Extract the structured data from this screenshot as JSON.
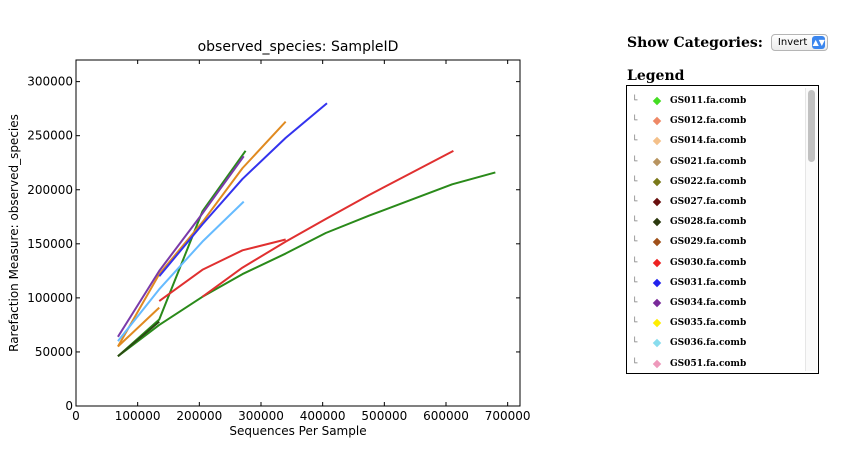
{
  "chart_data": {
    "type": "line",
    "title": "observed_species: SampleID",
    "xlabel": "Sequences Per Sample",
    "ylabel": "Rarefaction Measure: observed_species",
    "xlim": [
      0,
      720000
    ],
    "ylim": [
      0,
      320000
    ],
    "xticks": [
      0,
      100000,
      200000,
      300000,
      400000,
      500000,
      600000,
      700000
    ],
    "yticks": [
      0,
      50000,
      100000,
      150000,
      200000,
      250000,
      300000
    ],
    "grid": false,
    "series": [
      {
        "color": "#2a8a1a",
        "x": [
          68000,
          135000,
          205000,
          275000
        ],
        "y": [
          46000,
          80000,
          180000,
          236000
        ]
      },
      {
        "color": "#2a8a1a",
        "x": [
          68000,
          135000,
          205000,
          270000,
          340000,
          405000,
          475000,
          545000,
          610000,
          680000
        ],
        "y": [
          46000,
          75000,
          101000,
          122000,
          141000,
          160000,
          176000,
          191000,
          205000,
          216000
        ]
      },
      {
        "color": "#e03030",
        "x": [
          135000,
          205000,
          270000,
          340000
        ],
        "y": [
          97000,
          126000,
          144000,
          154000
        ]
      },
      {
        "color": "#e03030",
        "x": [
          205000,
          270000,
          340000,
          405000,
          475000,
          545000,
          612000
        ],
        "y": [
          101000,
          128000,
          152000,
          173000,
          195000,
          216000,
          236000
        ]
      },
      {
        "color": "#e08a20",
        "x": [
          68000,
          135000,
          205000,
          270000,
          340000
        ],
        "y": [
          55000,
          122000,
          170000,
          220000,
          263000
        ]
      },
      {
        "color": "#e08a20",
        "x": [
          68000,
          135000
        ],
        "y": [
          55000,
          91000
        ]
      },
      {
        "color": "#3333ee",
        "x": [
          135000,
          205000,
          270000,
          340000,
          407000
        ],
        "y": [
          120000,
          168000,
          210000,
          248000,
          280000
        ]
      },
      {
        "color": "#7a3aaa",
        "x": [
          68000,
          135000,
          205000,
          272000
        ],
        "y": [
          64000,
          125000,
          178000,
          231000
        ]
      },
      {
        "color": "#66bbff",
        "x": [
          68000,
          135000,
          205000,
          272000
        ],
        "y": [
          60000,
          108000,
          152000,
          189000
        ]
      },
      {
        "color": "#2b4a12",
        "x": [
          68000,
          135000
        ],
        "y": [
          46000,
          78000
        ]
      }
    ]
  },
  "controls": {
    "show_categories_label": "Show Categories:",
    "select_value": "Invert"
  },
  "legend": {
    "title": "Legend",
    "items": [
      {
        "label": "GS011.fa.comb",
        "color": "#44dd22"
      },
      {
        "label": "GS012.fa.comb",
        "color": "#ee8866"
      },
      {
        "label": "GS014.fa.comb",
        "color": "#f4c08a"
      },
      {
        "label": "GS021.fa.comb",
        "color": "#b89460"
      },
      {
        "label": "GS022.fa.comb",
        "color": "#7a7a1a"
      },
      {
        "label": "GS027.fa.comb",
        "color": "#6a0f0f"
      },
      {
        "label": "GS028.fa.comb",
        "color": "#2b3a0f"
      },
      {
        "label": "GS029.fa.comb",
        "color": "#a0501a"
      },
      {
        "label": "GS030.fa.comb",
        "color": "#ee2222"
      },
      {
        "label": "GS031.fa.comb",
        "color": "#2222ee"
      },
      {
        "label": "GS034.fa.comb",
        "color": "#7a2a9a"
      },
      {
        "label": "GS035.fa.comb",
        "color": "#ffee00"
      },
      {
        "label": "GS036.fa.comb",
        "color": "#88ddee"
      },
      {
        "label": "GS051.fa.comb",
        "color": "#ee99bb"
      }
    ]
  }
}
